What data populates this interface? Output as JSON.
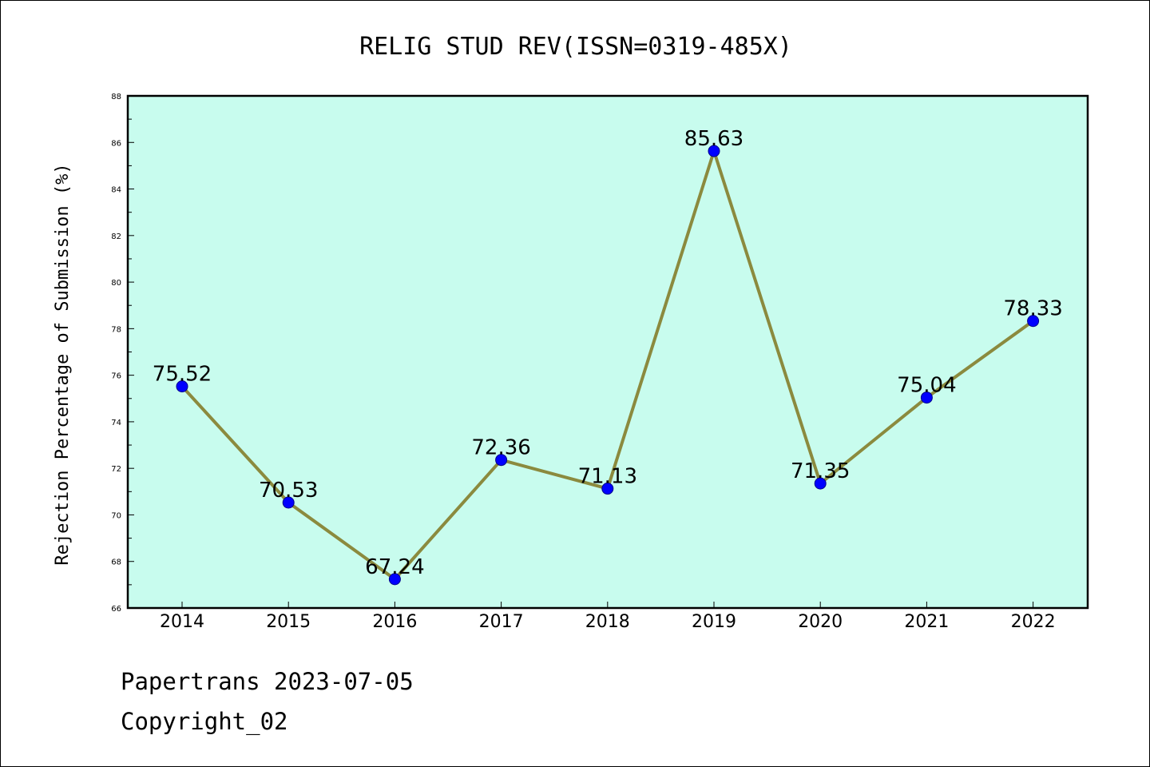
{
  "chart_data": {
    "type": "line",
    "title": "RELIG STUD REV(ISSN=0319-485X)",
    "xlabel": "",
    "ylabel": "Rejection Percentage of Submission (%)",
    "categories": [
      "2014",
      "2015",
      "2016",
      "2017",
      "2018",
      "2019",
      "2020",
      "2021",
      "2022"
    ],
    "values": [
      75.52,
      70.53,
      67.24,
      72.36,
      71.13,
      85.63,
      71.35,
      75.04,
      78.33
    ],
    "data_labels": [
      "75.52",
      "70.53",
      "67.24",
      "72.36",
      "71.13",
      "85.63",
      "71.35",
      "75.04",
      "78.33"
    ],
    "ylim": [
      66,
      88
    ],
    "yticks": [
      66,
      68,
      70,
      72,
      74,
      76,
      78,
      80,
      82,
      84,
      86,
      88
    ],
    "grid": false,
    "legend": "none",
    "colors": {
      "plot_background": "#c8fcee",
      "line": "#8b8a3e",
      "marker": "#0000ff"
    }
  },
  "footer": {
    "line1": "Papertrans 2023-07-05",
    "line2": "Copyright_02"
  }
}
